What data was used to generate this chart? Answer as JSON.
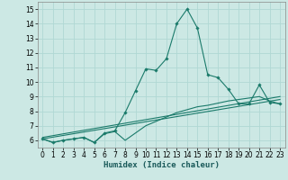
{
  "xlabel": "Humidex (Indice chaleur)",
  "xlim": [
    -0.5,
    23.5
  ],
  "ylim": [
    5.5,
    15.5
  ],
  "yticks": [
    6,
    7,
    8,
    9,
    10,
    11,
    12,
    13,
    14,
    15
  ],
  "xticks": [
    0,
    1,
    2,
    3,
    4,
    5,
    6,
    7,
    8,
    9,
    10,
    11,
    12,
    13,
    14,
    15,
    16,
    17,
    18,
    19,
    20,
    21,
    22,
    23
  ],
  "background_color": "#cce8e4",
  "grid_color": "#b0d8d4",
  "line_color": "#1a7a6a",
  "line1_x": [
    0,
    1,
    2,
    3,
    4,
    5,
    6,
    7,
    8,
    9,
    10,
    11,
    12,
    13,
    14,
    15,
    16,
    17,
    18,
    19,
    20,
    21,
    22,
    23
  ],
  "line1_y": [
    6.1,
    5.85,
    6.0,
    6.1,
    6.2,
    5.85,
    6.5,
    6.65,
    7.9,
    9.4,
    10.9,
    10.8,
    11.6,
    14.0,
    15.0,
    13.7,
    10.5,
    10.3,
    9.5,
    8.5,
    8.5,
    9.8,
    8.6,
    8.5
  ],
  "line2_x": [
    0,
    1,
    2,
    3,
    4,
    5,
    6,
    7,
    8,
    9,
    10,
    11,
    12,
    13,
    14,
    15,
    16,
    17,
    18,
    19,
    20,
    21,
    22,
    23
  ],
  "line2_y": [
    6.1,
    5.85,
    6.0,
    6.1,
    6.2,
    5.85,
    6.45,
    6.6,
    6.0,
    6.5,
    7.0,
    7.3,
    7.6,
    7.9,
    8.1,
    8.3,
    8.4,
    8.55,
    8.7,
    8.8,
    8.9,
    9.0,
    8.7,
    8.5
  ],
  "line3_y_start": 6.1,
  "line3_y_end": 8.8,
  "line4_y_start": 6.2,
  "line4_y_end": 9.0
}
